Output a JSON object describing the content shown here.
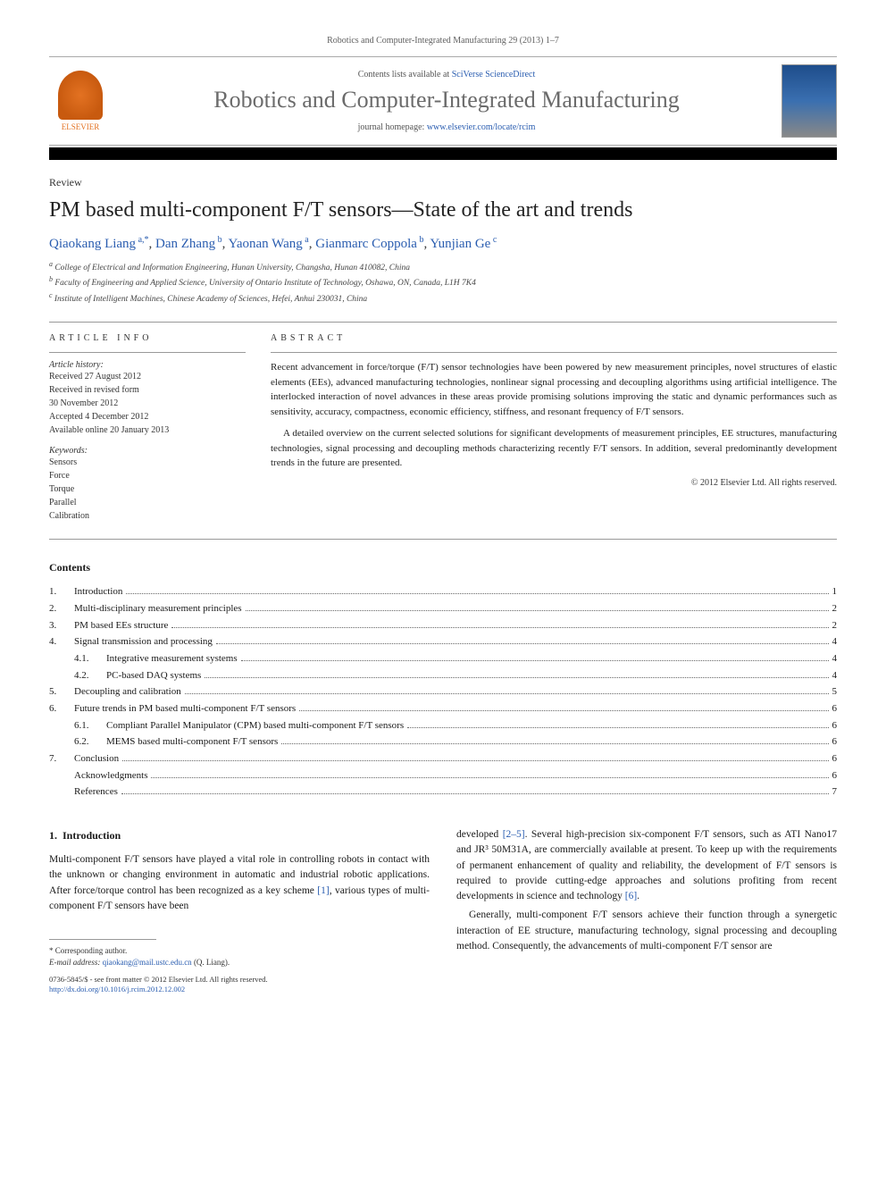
{
  "header": {
    "citation": "Robotics and Computer-Integrated Manufacturing 29 (2013) 1–7",
    "contents_available": "Contents lists available at ",
    "contents_source": "SciVerse ScienceDirect",
    "journal_title": "Robotics and Computer-Integrated Manufacturing",
    "homepage_prefix": "journal homepage: ",
    "homepage_url": "www.elsevier.com/locate/rcim",
    "publisher": "ELSEVIER"
  },
  "article": {
    "type": "Review",
    "title": "PM based multi-component F/T sensors—State of the art and trends",
    "authors_html": "Qiaokang Liang",
    "authors": [
      {
        "name": "Qiaokang Liang",
        "sup": "a,*"
      },
      {
        "name": "Dan Zhang",
        "sup": "b"
      },
      {
        "name": "Yaonan Wang",
        "sup": "a"
      },
      {
        "name": "Gianmarc Coppola",
        "sup": "b"
      },
      {
        "name": "Yunjian Ge",
        "sup": "c"
      }
    ],
    "affiliations": [
      "a College of Electrical and Information Engineering, Hunan University, Changsha, Hunan 410082, China",
      "b Faculty of Engineering and Applied Science, University of Ontario Institute of Technology, Oshawa, ON, Canada, L1H 7K4",
      "c Institute of Intelligent Machines, Chinese Academy of Sciences, Hefei, Anhui 230031, China"
    ]
  },
  "info": {
    "section_label": "article info",
    "history_label": "Article history:",
    "history": [
      "Received 27 August 2012",
      "Received in revised form",
      "30 November 2012",
      "Accepted 4 December 2012",
      "Available online 20 January 2013"
    ],
    "keywords_label": "Keywords:",
    "keywords": [
      "Sensors",
      "Force",
      "Torque",
      "Parallel",
      "Calibration"
    ]
  },
  "abstract": {
    "section_label": "abstract",
    "paragraphs": [
      "Recent advancement in force/torque (F/T) sensor technologies have been powered by new measurement principles, novel structures of elastic elements (EEs), advanced manufacturing technologies, nonlinear signal processing and decoupling algorithms using artificial intelligence. The interlocked interaction of novel advances in these areas provide promising solutions improving the static and dynamic performances such as sensitivity, accuracy, compactness, economic efficiency, stiffness, and resonant frequency of F/T sensors.",
      "A detailed overview on the current selected solutions for significant developments of measurement principles, EE structures, manufacturing technologies, signal processing and decoupling methods characterizing recently F/T sensors. In addition, several predominantly development trends in the future are presented."
    ],
    "copyright": "© 2012 Elsevier Ltd. All rights reserved."
  },
  "contents": {
    "heading": "Contents",
    "items": [
      {
        "num": "1.",
        "label": "Introduction",
        "page": "1",
        "level": 0
      },
      {
        "num": "2.",
        "label": "Multi-disciplinary measurement principles",
        "page": "2",
        "level": 0
      },
      {
        "num": "3.",
        "label": "PM based EEs structure",
        "page": "2",
        "level": 0
      },
      {
        "num": "4.",
        "label": "Signal transmission and processing",
        "page": "4",
        "level": 0
      },
      {
        "num": "4.1.",
        "label": "Integrative measurement systems",
        "page": "4",
        "level": 1
      },
      {
        "num": "4.2.",
        "label": "PC-based DAQ systems",
        "page": "4",
        "level": 1
      },
      {
        "num": "5.",
        "label": "Decoupling and calibration",
        "page": "5",
        "level": 0
      },
      {
        "num": "6.",
        "label": "Future trends in PM based multi-component F/T sensors",
        "page": "6",
        "level": 0
      },
      {
        "num": "6.1.",
        "label": "Compliant Parallel Manipulator (CPM) based multi-component F/T sensors",
        "page": "6",
        "level": 1
      },
      {
        "num": "6.2.",
        "label": "MEMS based multi-component F/T sensors",
        "page": "6",
        "level": 1
      },
      {
        "num": "7.",
        "label": "Conclusion",
        "page": "6",
        "level": 0
      },
      {
        "num": "",
        "label": "Acknowledgments",
        "page": "6",
        "level": 0
      },
      {
        "num": "",
        "label": "References",
        "page": "7",
        "level": 0
      }
    ]
  },
  "body": {
    "section_num": "1.",
    "section_title": "Introduction",
    "left_col": "Multi-component F/T sensors have played a vital role in controlling robots in contact with the unknown or changing environment in automatic and industrial robotic applications. After force/torque control has been recognized as a key scheme [1], various types of multi-component F/T sensors have been",
    "right_col_p1": "developed [2–5]. Several high-precision six-component F/T sensors, such as ATI Nano17 and JR³ 50M31A, are commercially available at present. To keep up with the requirements of permanent enhancement of quality and reliability, the development of F/T sensors is required to provide cutting-edge approaches and solutions profiting from recent developments in science and technology [6].",
    "right_col_p2": "Generally, multi-component F/T sensors achieve their function through a synergetic interaction of EE structure, manufacturing technology, signal processing and decoupling method. Consequently, the advancements of multi-component F/T sensor are",
    "ref1": "[1]",
    "ref25": "[2–5]",
    "ref6": "[6]"
  },
  "footer": {
    "corr_label": "* Corresponding author.",
    "email_label": "E-mail address: ",
    "email": "qiaokang@mail.ustc.edu.cn",
    "email_who": " (Q. Liang).",
    "copyright_line1": "0736-5845/$ - see front matter © 2012 Elsevier Ltd. All rights reserved.",
    "doi_url": "http://dx.doi.org/10.1016/j.rcim.2012.12.002"
  },
  "colors": {
    "link": "#2a5db0",
    "elsevier_orange": "#e37222",
    "text": "#1a1a1a",
    "muted": "#606060"
  }
}
